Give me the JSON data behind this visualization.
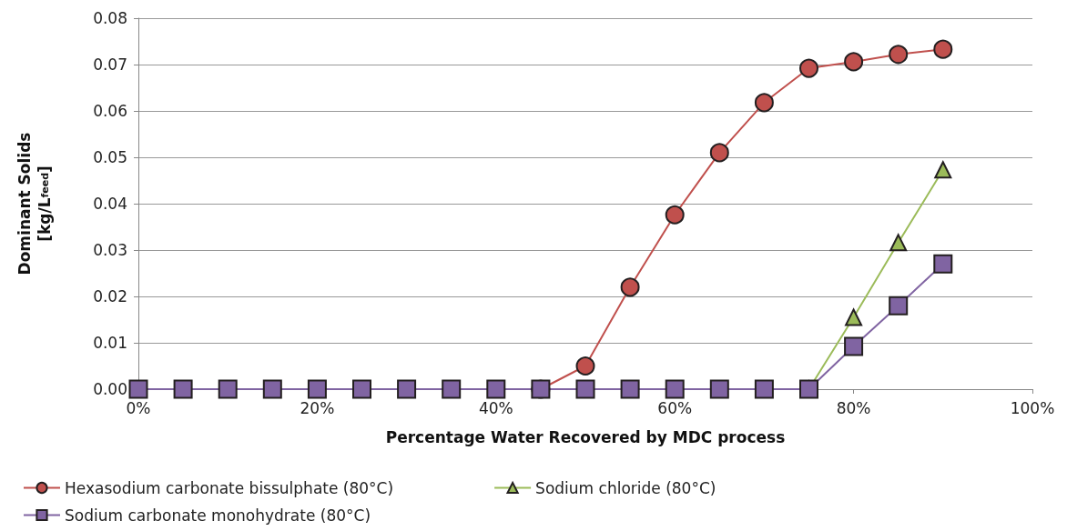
{
  "chart_data": {
    "type": "line",
    "xlabel": "Percentage Water Recovered by MDC process",
    "ylabel": "Dominant Solids\n[kg/L$_{feed}$]",
    "x": [
      0,
      5,
      10,
      15,
      20,
      25,
      30,
      35,
      40,
      45,
      50,
      55,
      60,
      65,
      70,
      75,
      80,
      85,
      90
    ],
    "series": [
      {
        "name": "Hexasodium carbonate bissulphate (80°C)",
        "color": "#c0504d",
        "marker": "circle",
        "values": [
          null,
          null,
          null,
          null,
          null,
          null,
          null,
          null,
          null,
          0,
          0.005,
          0.022,
          0.0376,
          0.051,
          0.0618,
          0.0692,
          0.0706,
          0.0722,
          0.0733
        ]
      },
      {
        "name": "Sodium chloride (80°C)",
        "color": "#9bbb59",
        "marker": "triangle",
        "values": [
          null,
          null,
          null,
          null,
          null,
          null,
          null,
          null,
          null,
          null,
          null,
          null,
          null,
          null,
          null,
          0,
          0.0155,
          0.0316,
          0.0473
        ]
      },
      {
        "name": "Sodium carbonate monohydrate (80°C)",
        "color": "#8064a2",
        "marker": "square",
        "values": [
          0,
          0,
          0,
          0,
          0,
          0,
          0,
          0,
          0,
          0,
          0,
          0,
          0,
          0,
          0,
          0,
          0.0092,
          0.018,
          0.027
        ]
      }
    ],
    "xlim": [
      0,
      100
    ],
    "xticks": [
      {
        "value": 0,
        "label": "0%"
      },
      {
        "value": 20,
        "label": "20%"
      },
      {
        "value": 40,
        "label": "40%"
      },
      {
        "value": 60,
        "label": "60%"
      },
      {
        "value": 80,
        "label": "80%"
      },
      {
        "value": 100,
        "label": "100%"
      }
    ],
    "ylim": [
      0,
      0.08
    ],
    "yticks": [
      {
        "value": 0,
        "label": "0.00"
      },
      {
        "value": 0.01,
        "label": "0.01"
      },
      {
        "value": 0.02,
        "label": "0.02"
      },
      {
        "value": 0.03,
        "label": "0.03"
      },
      {
        "value": 0.04,
        "label": "0.04"
      },
      {
        "value": 0.05,
        "label": "0.05"
      },
      {
        "value": 0.06,
        "label": "0.06"
      },
      {
        "value": 0.07,
        "label": "0.07"
      },
      {
        "value": 0.08,
        "label": "0.08"
      }
    ],
    "grid": "y",
    "legend": "bottom"
  }
}
